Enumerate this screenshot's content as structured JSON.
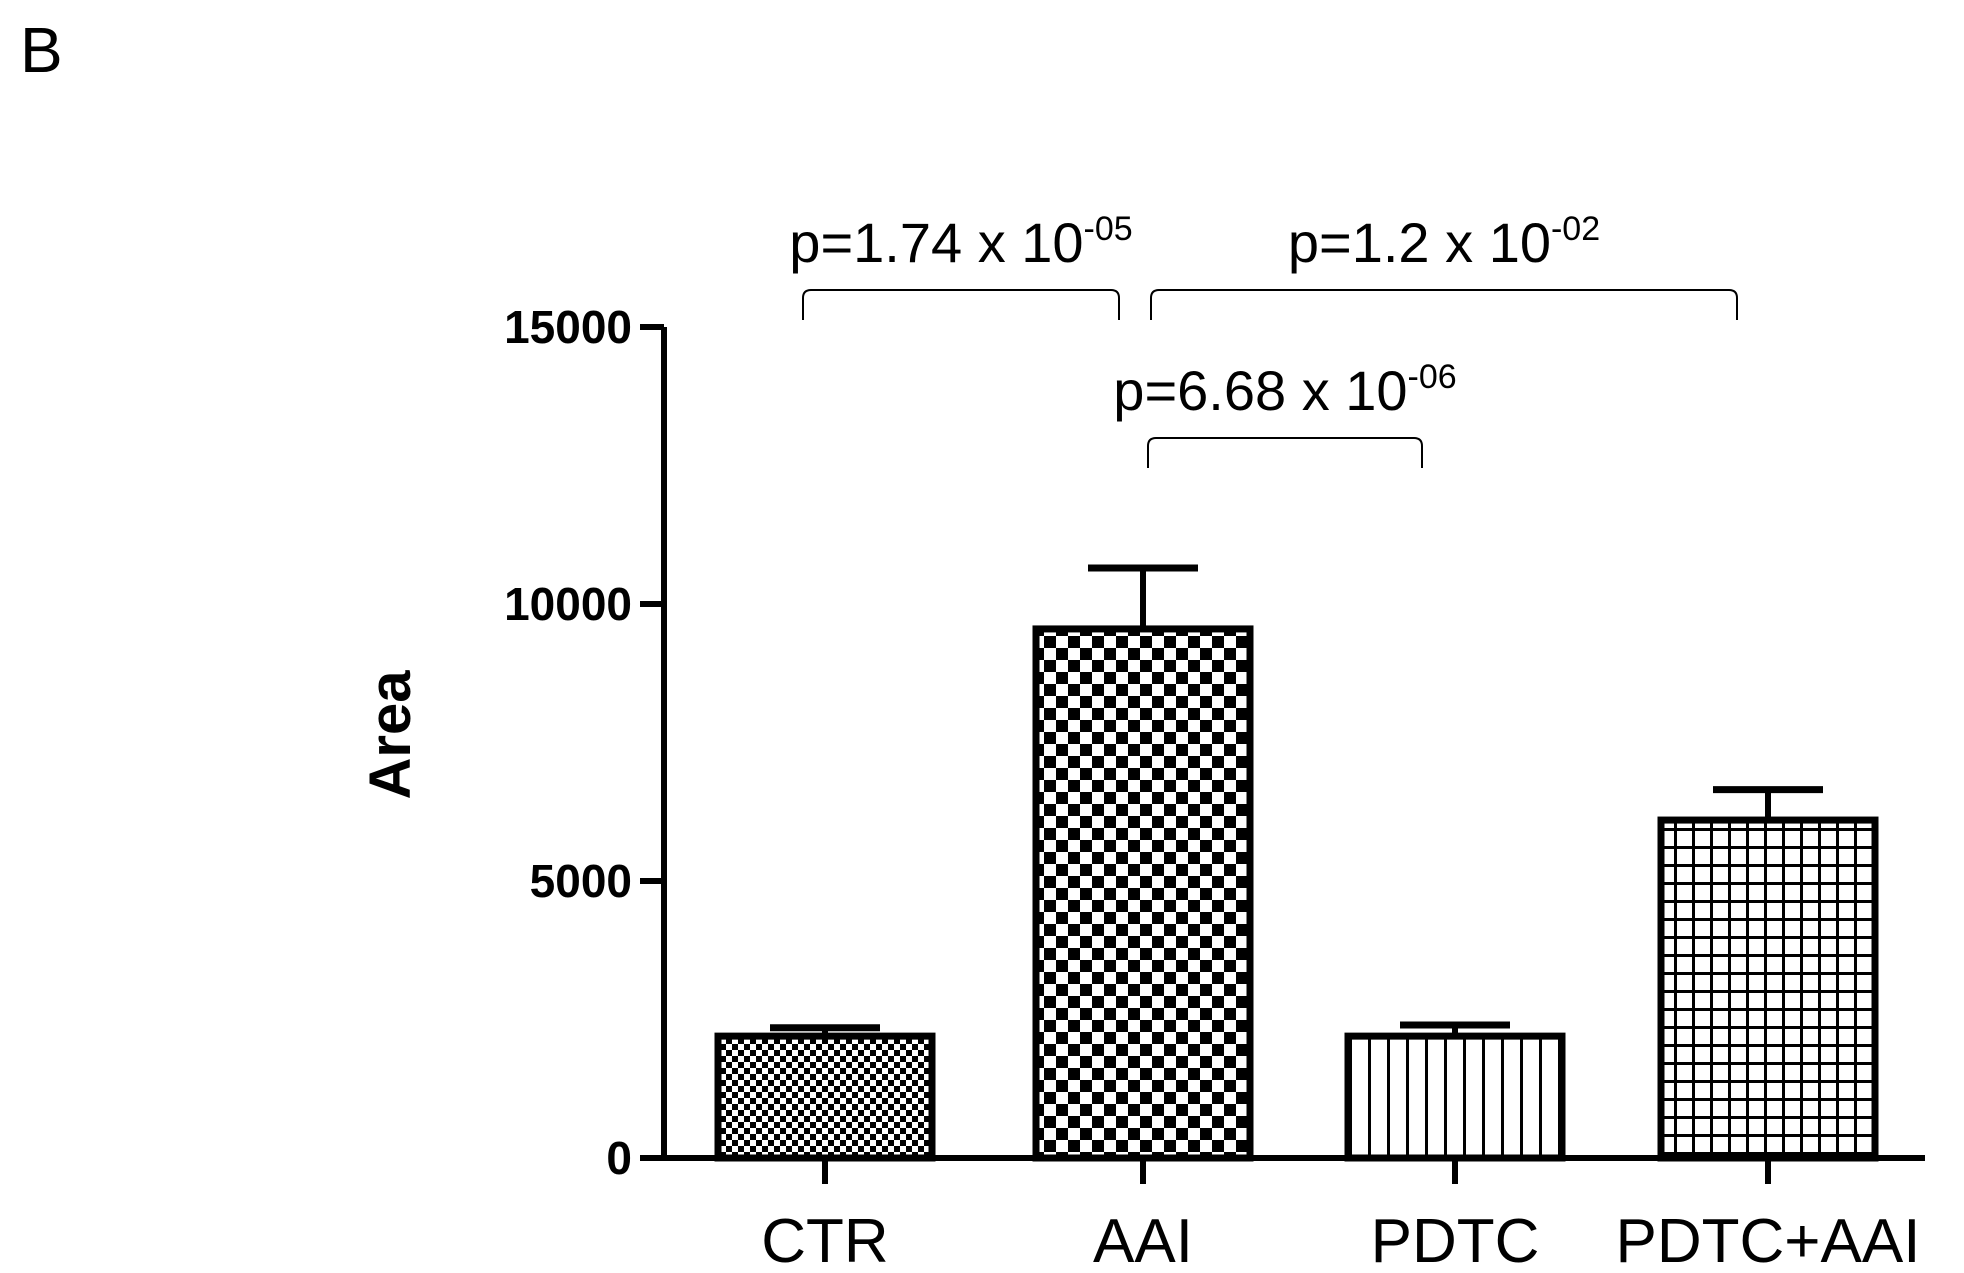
{
  "panel_label": "B",
  "chart_data": {
    "type": "bar",
    "categories": [
      "CTR",
      "AAI",
      "PDTC",
      "PDTC+AAI"
    ],
    "values": [
      2200,
      9550,
      2200,
      6100
    ],
    "errors": [
      150,
      1100,
      200,
      550
    ],
    "patterns": [
      "fine-checker",
      "checker",
      "vertical-lines",
      "grid"
    ],
    "ylabel": "Area",
    "xlabel": "",
    "ylim": [
      0,
      15000
    ],
    "yticks": [
      0,
      5000,
      10000,
      15000
    ],
    "ytick_labels": [
      "0",
      "5000",
      "10000",
      "15000"
    ],
    "grid": false,
    "annotations": [
      {
        "from": "CTR",
        "to": "AAI",
        "text": "p=1.74 x 10",
        "exponent": "-05",
        "level": 1
      },
      {
        "from": "AAI",
        "to": "PDTC+AAI",
        "text": "p=1.2 x 10",
        "exponent": "-02",
        "level": 1
      },
      {
        "from": "AAI",
        "to": "PDTC",
        "text": "p=6.68 x 10",
        "exponent": "-06",
        "level": 0
      }
    ]
  }
}
